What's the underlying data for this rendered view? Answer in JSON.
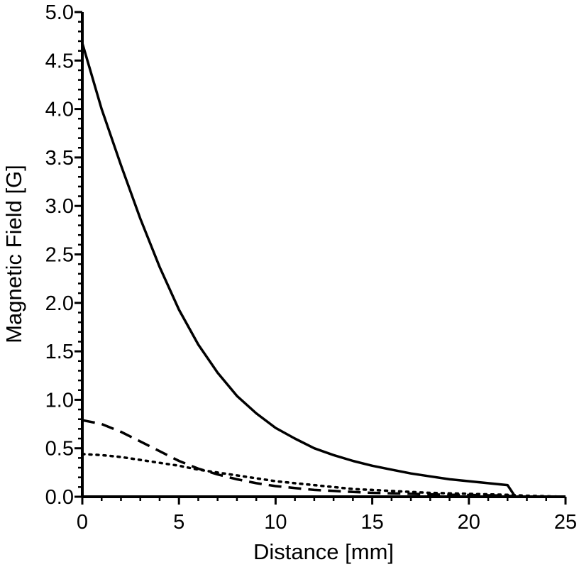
{
  "chart_data": {
    "type": "line",
    "title": "",
    "xlabel": "Distance [mm]",
    "ylabel": "Magnetic Field [G]",
    "xlim": [
      0,
      25
    ],
    "ylim": [
      0,
      5
    ],
    "x_ticks": [
      "0",
      "5",
      "10",
      "15",
      "20",
      "25"
    ],
    "y_ticks": [
      "0.0",
      "0.5",
      "1.0",
      "1.5",
      "2.0",
      "2.5",
      "3.0",
      "3.5",
      "4.0",
      "4.5",
      "5.0"
    ],
    "grid": false,
    "legend": "none",
    "series": [
      {
        "style": "solid",
        "color": "#000000",
        "points": [
          [
            0,
            4.68
          ],
          [
            1,
            4.0
          ],
          [
            2,
            3.42
          ],
          [
            3,
            2.87
          ],
          [
            4,
            2.37
          ],
          [
            5,
            1.93
          ],
          [
            6,
            1.57
          ],
          [
            7,
            1.28
          ],
          [
            8,
            1.04
          ],
          [
            9,
            0.86
          ],
          [
            10,
            0.71
          ],
          [
            11,
            0.6
          ],
          [
            12,
            0.5
          ],
          [
            13,
            0.43
          ],
          [
            14,
            0.37
          ],
          [
            15,
            0.32
          ],
          [
            16,
            0.28
          ],
          [
            17,
            0.24
          ],
          [
            18,
            0.21
          ],
          [
            19,
            0.18
          ],
          [
            20,
            0.16
          ],
          [
            21,
            0.14
          ],
          [
            22,
            0.12
          ],
          [
            22.4,
            0.0
          ],
          [
            25,
            0.0
          ]
        ]
      },
      {
        "style": "dashed",
        "color": "#000000",
        "points": [
          [
            0,
            0.79
          ],
          [
            1,
            0.75
          ],
          [
            2,
            0.67
          ],
          [
            3,
            0.57
          ],
          [
            4,
            0.47
          ],
          [
            5,
            0.37
          ],
          [
            6,
            0.29
          ],
          [
            7,
            0.23
          ],
          [
            8,
            0.18
          ],
          [
            9,
            0.14
          ],
          [
            10,
            0.11
          ],
          [
            11,
            0.09
          ],
          [
            12,
            0.07
          ],
          [
            13,
            0.06
          ],
          [
            14,
            0.05
          ],
          [
            15,
            0.04
          ],
          [
            16,
            0.035
          ],
          [
            17,
            0.03
          ],
          [
            18,
            0.025
          ],
          [
            19,
            0.02
          ],
          [
            20,
            0.018
          ],
          [
            21,
            0.015
          ],
          [
            22,
            0.012
          ],
          [
            22.4,
            0.0
          ],
          [
            25,
            0.0
          ]
        ]
      },
      {
        "style": "dotted",
        "color": "#000000",
        "points": [
          [
            0,
            0.44
          ],
          [
            1,
            0.43
          ],
          [
            2,
            0.41
          ],
          [
            3,
            0.38
          ],
          [
            4,
            0.35
          ],
          [
            5,
            0.32
          ],
          [
            6,
            0.28
          ],
          [
            7,
            0.25
          ],
          [
            8,
            0.22
          ],
          [
            9,
            0.19
          ],
          [
            10,
            0.16
          ],
          [
            11,
            0.14
          ],
          [
            12,
            0.12
          ],
          [
            13,
            0.1
          ],
          [
            14,
            0.08
          ],
          [
            15,
            0.07
          ],
          [
            16,
            0.06
          ],
          [
            17,
            0.05
          ],
          [
            18,
            0.04
          ],
          [
            19,
            0.035
          ],
          [
            20,
            0.03
          ],
          [
            21,
            0.025
          ],
          [
            22,
            0.02
          ],
          [
            23,
            0.01
          ],
          [
            24,
            0.005
          ],
          [
            25,
            0.0
          ]
        ]
      }
    ]
  }
}
